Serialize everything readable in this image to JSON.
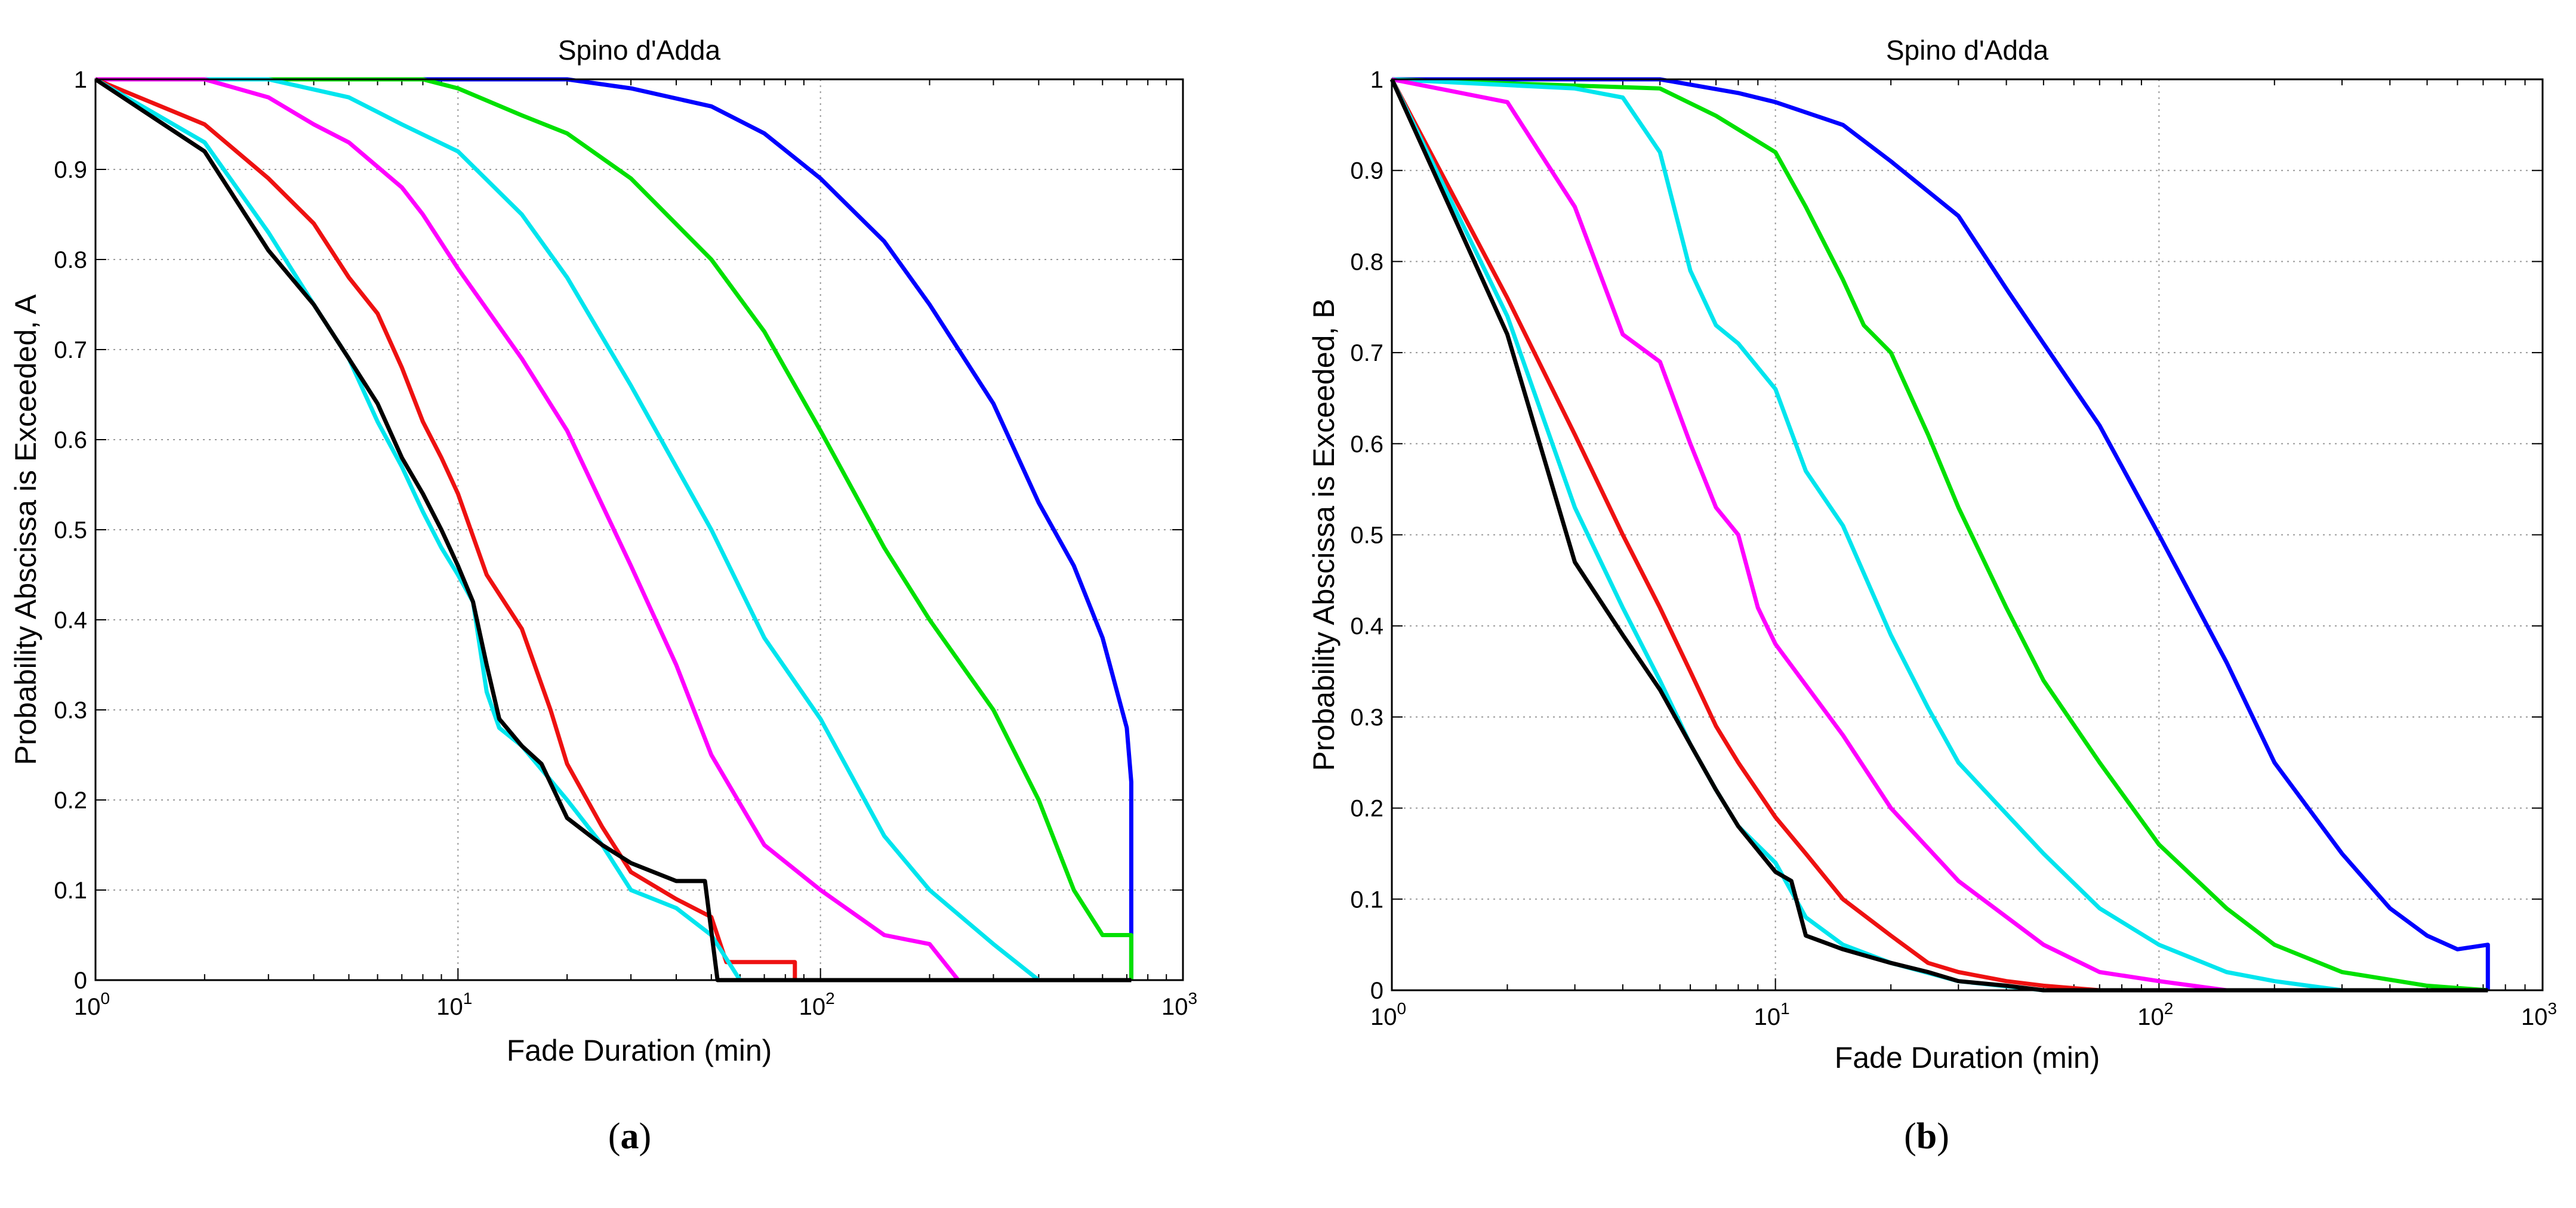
{
  "chart_data": [
    {
      "type": "line",
      "panel_label": "(a)",
      "title": "Spino d'Adda",
      "xlabel": "Fade Duration (min)",
      "ylabel": "Probability Abscissa is Exceeded, A",
      "xscale": "log",
      "xlim": [
        1,
        1000
      ],
      "ylim": [
        0,
        1
      ],
      "xticks": [
        {
          "base": "10",
          "exp": "0"
        },
        {
          "base": "10",
          "exp": "1"
        },
        {
          "base": "10",
          "exp": "2"
        },
        {
          "base": "10",
          "exp": "3"
        }
      ],
      "yticks": [
        "0",
        "0.1",
        "0.2",
        "0.3",
        "0.4",
        "0.5",
        "0.6",
        "0.7",
        "0.8",
        "0.9",
        "1"
      ],
      "grid": true,
      "series": [
        {
          "name": "blue",
          "color": "#0000ff",
          "x": [
            1,
            20,
            30,
            50,
            70,
            100,
            150,
            200,
            300,
            400,
            500,
            600,
            700,
            720,
            720
          ],
          "y": [
            1,
            1,
            0.99,
            0.97,
            0.94,
            0.89,
            0.82,
            0.75,
            0.64,
            0.53,
            0.46,
            0.38,
            0.28,
            0.22,
            0
          ]
        },
        {
          "name": "green",
          "color": "#00e000",
          "x": [
            1,
            8,
            10,
            15,
            20,
            30,
            50,
            70,
            100,
            150,
            200,
            300,
            400,
            500,
            600,
            720,
            720
          ],
          "y": [
            1,
            1,
            0.99,
            0.96,
            0.94,
            0.89,
            0.8,
            0.72,
            0.61,
            0.48,
            0.4,
            0.3,
            0.2,
            0.1,
            0.05,
            0.05,
            0
          ]
        },
        {
          "name": "cyan-1",
          "color": "#00e5ee",
          "x": [
            1,
            3,
            5,
            7,
            10,
            15,
            20,
            30,
            50,
            70,
            100,
            150,
            200,
            300,
            400,
            720
          ],
          "y": [
            1,
            1,
            0.98,
            0.95,
            0.92,
            0.85,
            0.78,
            0.66,
            0.5,
            0.38,
            0.29,
            0.16,
            0.1,
            0.04,
            0,
            0
          ]
        },
        {
          "name": "magenta",
          "color": "#ff00ff",
          "x": [
            1,
            2,
            3,
            4,
            5,
            7,
            8,
            10,
            15,
            20,
            30,
            40,
            50,
            70,
            100,
            150,
            200,
            240,
            720
          ],
          "y": [
            1,
            1,
            0.98,
            0.95,
            0.93,
            0.88,
            0.85,
            0.79,
            0.69,
            0.61,
            0.46,
            0.35,
            0.25,
            0.15,
            0.1,
            0.05,
            0.04,
            0,
            0
          ]
        },
        {
          "name": "red",
          "color": "#ee1111",
          "x": [
            1,
            2,
            3,
            4,
            5,
            6,
            7,
            8,
            9,
            10,
            12,
            15,
            18,
            20,
            25,
            30,
            40,
            50,
            55,
            85,
            85,
            720
          ],
          "y": [
            1,
            0.95,
            0.89,
            0.84,
            0.78,
            0.74,
            0.68,
            0.62,
            0.58,
            0.54,
            0.45,
            0.39,
            0.3,
            0.24,
            0.17,
            0.12,
            0.09,
            0.07,
            0.02,
            0.02,
            0,
            0
          ]
        },
        {
          "name": "cyan-2",
          "color": "#00e5ee",
          "x": [
            1,
            2,
            3,
            4,
            5,
            6,
            7,
            8,
            9,
            10,
            11,
            12,
            13,
            15,
            20,
            25,
            30,
            40,
            50,
            60,
            720
          ],
          "y": [
            1,
            0.93,
            0.83,
            0.75,
            0.69,
            0.62,
            0.57,
            0.52,
            0.48,
            0.45,
            0.42,
            0.32,
            0.28,
            0.26,
            0.2,
            0.15,
            0.1,
            0.08,
            0.05,
            0,
            0
          ]
        },
        {
          "name": "black",
          "color": "#000000",
          "x": [
            1,
            2,
            3,
            4,
            5,
            6,
            7,
            8,
            9,
            10,
            11,
            12,
            13,
            15,
            17,
            20,
            25,
            30,
            40,
            48,
            52,
            720
          ],
          "y": [
            1,
            0.92,
            0.81,
            0.75,
            0.69,
            0.64,
            0.58,
            0.54,
            0.5,
            0.46,
            0.42,
            0.35,
            0.29,
            0.26,
            0.24,
            0.18,
            0.15,
            0.13,
            0.11,
            0.11,
            0,
            0
          ]
        }
      ]
    },
    {
      "type": "line",
      "panel_label": "(b)",
      "title": "Spino d'Adda",
      "xlabel": "Fade Duration (min)",
      "ylabel": "Probability Abscissa is Exceeded, B",
      "xscale": "log",
      "xlim": [
        1,
        1000
      ],
      "ylim": [
        0,
        1
      ],
      "xticks": [
        {
          "base": "10",
          "exp": "0"
        },
        {
          "base": "10",
          "exp": "1"
        },
        {
          "base": "10",
          "exp": "2"
        },
        {
          "base": "10",
          "exp": "3"
        }
      ],
      "yticks": [
        "0",
        "0.1",
        "0.2",
        "0.3",
        "0.4",
        "0.5",
        "0.6",
        "0.7",
        "0.8",
        "0.9",
        "1"
      ],
      "grid": true,
      "series": [
        {
          "name": "blue",
          "color": "#0000ff",
          "x": [
            1,
            5,
            8,
            10,
            15,
            20,
            30,
            40,
            50,
            70,
            100,
            150,
            200,
            300,
            400,
            500,
            600,
            720,
            720
          ],
          "y": [
            1,
            1,
            0.985,
            0.975,
            0.95,
            0.91,
            0.85,
            0.77,
            0.71,
            0.62,
            0.5,
            0.36,
            0.25,
            0.15,
            0.09,
            0.06,
            0.045,
            0.05,
            0
          ]
        },
        {
          "name": "green",
          "color": "#00e000",
          "x": [
            1,
            5,
            7,
            10,
            12,
            15,
            17,
            20,
            25,
            30,
            40,
            50,
            70,
            100,
            150,
            200,
            300,
            500,
            720
          ],
          "y": [
            1,
            0.99,
            0.96,
            0.92,
            0.86,
            0.78,
            0.73,
            0.7,
            0.61,
            0.53,
            0.42,
            0.34,
            0.25,
            0.16,
            0.09,
            0.05,
            0.02,
            0.005,
            0
          ]
        },
        {
          "name": "cyan-1",
          "color": "#00e5ee",
          "x": [
            1,
            3,
            4,
            5,
            6,
            7,
            8,
            10,
            12,
            15,
            20,
            25,
            30,
            50,
            70,
            100,
            150,
            200,
            300,
            720
          ],
          "y": [
            1,
            0.99,
            0.98,
            0.92,
            0.79,
            0.73,
            0.71,
            0.66,
            0.57,
            0.51,
            0.39,
            0.31,
            0.25,
            0.15,
            0.09,
            0.05,
            0.02,
            0.01,
            0,
            0
          ]
        },
        {
          "name": "magenta",
          "color": "#ff00ff",
          "x": [
            1,
            2,
            3,
            4,
            5,
            6,
            7,
            8,
            9,
            10,
            15,
            20,
            30,
            50,
            70,
            100,
            150,
            720
          ],
          "y": [
            1,
            0.975,
            0.86,
            0.72,
            0.69,
            0.6,
            0.53,
            0.5,
            0.42,
            0.38,
            0.28,
            0.2,
            0.12,
            0.05,
            0.02,
            0.01,
            0,
            0
          ]
        },
        {
          "name": "red",
          "color": "#ee1111",
          "x": [
            1,
            2,
            3,
            4,
            5,
            6,
            7,
            8,
            10,
            12,
            15,
            20,
            25,
            30,
            40,
            50,
            70,
            720
          ],
          "y": [
            1,
            0.76,
            0.61,
            0.5,
            0.42,
            0.35,
            0.29,
            0.25,
            0.19,
            0.15,
            0.1,
            0.06,
            0.03,
            0.02,
            0.01,
            0.005,
            0,
            0
          ]
        },
        {
          "name": "cyan-2",
          "color": "#00e5ee",
          "x": [
            1,
            2,
            3,
            4,
            5,
            6,
            7,
            8,
            10,
            12,
            15,
            20,
            30,
            50,
            720
          ],
          "y": [
            1,
            0.74,
            0.53,
            0.42,
            0.34,
            0.27,
            0.22,
            0.18,
            0.14,
            0.08,
            0.05,
            0.03,
            0.01,
            0,
            0
          ]
        },
        {
          "name": "black",
          "color": "#000000",
          "x": [
            1,
            2,
            3,
            4,
            5,
            6,
            7,
            8,
            10,
            11,
            12,
            15,
            20,
            25,
            30,
            40,
            50,
            720
          ],
          "y": [
            1,
            0.72,
            0.47,
            0.39,
            0.33,
            0.27,
            0.22,
            0.18,
            0.13,
            0.12,
            0.06,
            0.045,
            0.03,
            0.02,
            0.01,
            0.005,
            0,
            0
          ]
        }
      ]
    }
  ]
}
